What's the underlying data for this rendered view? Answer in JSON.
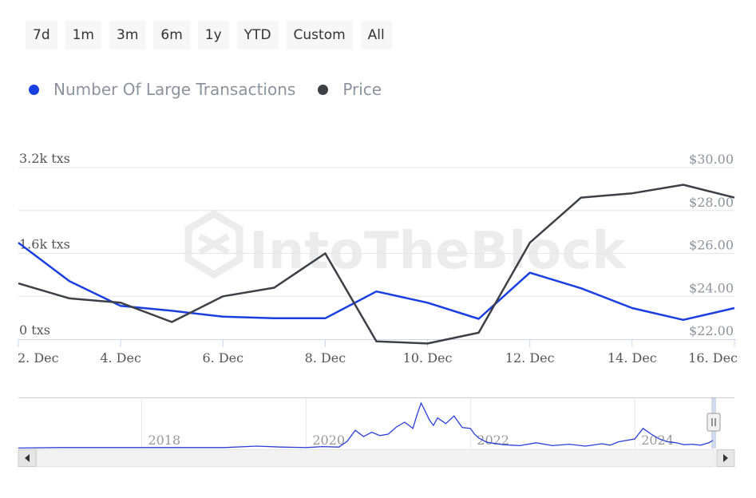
{
  "range_selector": {
    "buttons": [
      "7d",
      "1m",
      "3m",
      "6m",
      "1y",
      "YTD",
      "Custom",
      "All"
    ]
  },
  "colors": {
    "transactions": "#1a3fe0",
    "price": "#3d4147",
    "grid": "#e6e6e6",
    "axis_text": "#555555",
    "right_axis_text": "#8c939c",
    "navigator_line": "#2a3fd8"
  },
  "chart_data": {
    "type": "line",
    "x_axis": {
      "type": "datetime",
      "min": 2,
      "max": 16,
      "tick_values": [
        2,
        4,
        6,
        8,
        10,
        12,
        14,
        16
      ],
      "tick_labels": [
        "2. Dec",
        "4. Dec",
        "6. Dec",
        "8. Dec",
        "10. Dec",
        "12. Dec",
        "14. Dec",
        "16. Dec"
      ]
    },
    "y_left": {
      "ylim": [
        0,
        3200
      ],
      "tick_values": [
        0,
        1600,
        3200
      ],
      "tick_labels": [
        "0 txs",
        "1.6k txs",
        "3.2k txs"
      ]
    },
    "y_right": {
      "ylim": [
        22,
        30
      ],
      "tick_values": [
        22,
        24,
        26,
        28,
        30
      ],
      "tick_labels": [
        "$22.00",
        "$24.00",
        "$26.00",
        "$28.00",
        "$30.00"
      ]
    },
    "series": [
      {
        "name": "Number Of Large Transactions",
        "axis": "left",
        "x": [
          2,
          3,
          4,
          5,
          6,
          7,
          8,
          9,
          10,
          11,
          12,
          13,
          14,
          15,
          16
        ],
        "values": [
          1800,
          1080,
          620,
          530,
          420,
          390,
          390,
          890,
          680,
          380,
          1240,
          950,
          580,
          360,
          580
        ]
      },
      {
        "name": "Price",
        "axis": "right",
        "x": [
          2,
          3,
          4,
          5,
          6,
          7,
          8,
          9,
          10,
          11,
          12,
          13,
          14,
          15,
          16
        ],
        "values": [
          24.6,
          23.9,
          23.7,
          22.8,
          24.0,
          24.4,
          26.0,
          21.9,
          21.8,
          22.3,
          26.5,
          28.6,
          28.8,
          29.2,
          28.6
        ]
      }
    ],
    "navigator": {
      "year_labels": [
        "2018",
        "2020",
        "2022",
        "2024"
      ],
      "year_values": [
        2018,
        2020,
        2022,
        2024
      ],
      "x_range": [
        2016.5,
        2024.95
      ],
      "series": [
        [
          2016.5,
          0.01
        ],
        [
          2017.0,
          0.02
        ],
        [
          2017.5,
          0.02
        ],
        [
          2018.0,
          0.02
        ],
        [
          2018.5,
          0.02
        ],
        [
          2019.0,
          0.02
        ],
        [
          2019.4,
          0.05
        ],
        [
          2019.7,
          0.03
        ],
        [
          2020.0,
          0.02
        ],
        [
          2020.2,
          0.04
        ],
        [
          2020.4,
          0.03
        ],
        [
          2020.5,
          0.15
        ],
        [
          2020.6,
          0.38
        ],
        [
          2020.7,
          0.25
        ],
        [
          2020.8,
          0.34
        ],
        [
          2020.9,
          0.27
        ],
        [
          2021.0,
          0.3
        ],
        [
          2021.1,
          0.45
        ],
        [
          2021.2,
          0.55
        ],
        [
          2021.3,
          0.42
        ],
        [
          2021.35,
          0.7
        ],
        [
          2021.4,
          0.95
        ],
        [
          2021.45,
          0.78
        ],
        [
          2021.5,
          0.6
        ],
        [
          2021.55,
          0.48
        ],
        [
          2021.6,
          0.64
        ],
        [
          2021.7,
          0.52
        ],
        [
          2021.8,
          0.68
        ],
        [
          2021.9,
          0.44
        ],
        [
          2022.0,
          0.42
        ],
        [
          2022.05,
          0.3
        ],
        [
          2022.1,
          0.22
        ],
        [
          2022.2,
          0.13
        ],
        [
          2022.4,
          0.08
        ],
        [
          2022.6,
          0.06
        ],
        [
          2022.8,
          0.12
        ],
        [
          2023.0,
          0.06
        ],
        [
          2023.2,
          0.09
        ],
        [
          2023.4,
          0.05
        ],
        [
          2023.6,
          0.1
        ],
        [
          2023.7,
          0.07
        ],
        [
          2023.8,
          0.14
        ],
        [
          2024.0,
          0.2
        ],
        [
          2024.1,
          0.42
        ],
        [
          2024.2,
          0.3
        ],
        [
          2024.3,
          0.2
        ],
        [
          2024.4,
          0.14
        ],
        [
          2024.5,
          0.12
        ],
        [
          2024.6,
          0.08
        ],
        [
          2024.7,
          0.09
        ],
        [
          2024.8,
          0.07
        ],
        [
          2024.9,
          0.12
        ],
        [
          2024.95,
          0.17
        ]
      ]
    }
  }
}
